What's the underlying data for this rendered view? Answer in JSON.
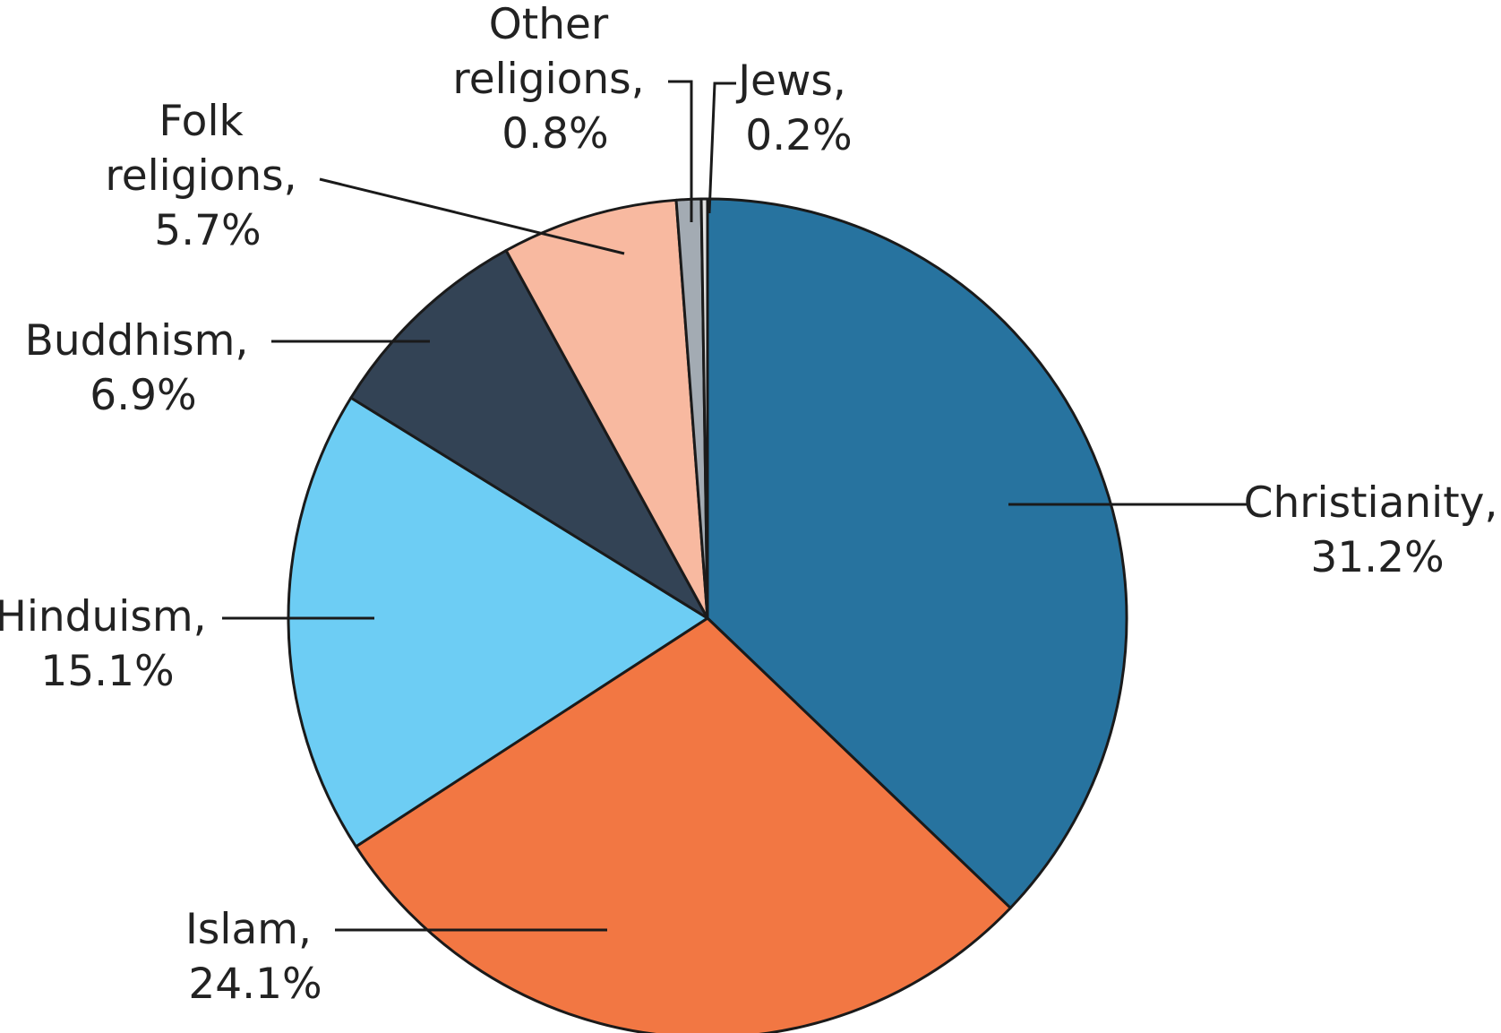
{
  "chart_data": {
    "type": "pie",
    "title": "",
    "start": "top, clockwise",
    "slices": [
      {
        "name": "Christianity",
        "value": 31.2,
        "label_line1": "Christianity,",
        "label_line2": "31.2%",
        "color": "#27739F"
      },
      {
        "name": "Islam",
        "value": 24.1,
        "label_line1": "Islam,",
        "label_line2": "24.1%",
        "color": "#F27743"
      },
      {
        "name": "Hinduism",
        "value": 15.1,
        "label_line1": "Hinduism,",
        "label_line2": "15.1%",
        "color": "#6DCDF4"
      },
      {
        "name": "Buddhism",
        "value": 6.9,
        "label_line1": "Buddhism,",
        "label_line2": "6.9%",
        "color": "#334355"
      },
      {
        "name": "Folk religions",
        "value": 5.7,
        "label_line1": "Folk",
        "label_line2": "religions,",
        "label_line3": "5.7%",
        "color": "#F8B9A0"
      },
      {
        "name": "Other religions",
        "value": 0.8,
        "label_line1": "Other",
        "label_line2": "religions,",
        "label_line3": "0.8%",
        "color": "#A3ABB3"
      },
      {
        "name": "Jews",
        "value": 0.2,
        "label_line1": "Jews,",
        "label_line2": "0.2%",
        "color": "#E1E1E1"
      }
    ]
  }
}
